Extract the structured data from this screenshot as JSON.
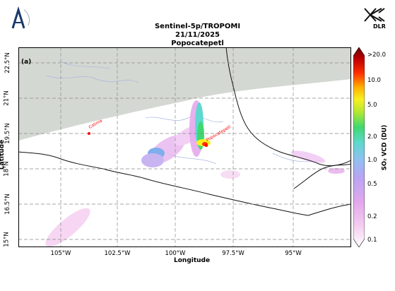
{
  "header": {
    "title_line1": "Sentinel-5p/TROPOMI",
    "title_line2": "21/11/2025",
    "title_line3": "Popocatepetl"
  },
  "logos": {
    "left_name": "agency-logo",
    "right_text": "DLR"
  },
  "map": {
    "panel_label": "(a)",
    "lat_ticks": [
      "22.5°N",
      "21°N",
      "19.5°N",
      "18°N",
      "16.5°N",
      "15°N"
    ],
    "lon_ticks": [
      "105°W",
      "102.5°W",
      "100°W",
      "97.5°W",
      "95°W"
    ],
    "xlabel": "Longitude",
    "ylabel": "Latitude",
    "markers": [
      {
        "name": "Colima",
        "color": "#ff0000"
      },
      {
        "name": "Popocatepetl",
        "color": "#ff0000"
      }
    ],
    "land_color": "#ffffff",
    "no_data_color": "#d4d8d2",
    "coastline_color": "#111111",
    "river_color": "#a8b8e0"
  },
  "colorbar": {
    "label": "SO$_2$ VCD (DU)",
    "label_display": "SO₂ VCD (DU)",
    "ticks": [
      ">20.0",
      "10.0",
      "5.0",
      "2.0",
      "1.0",
      "0.5",
      "0.2",
      "0.1"
    ],
    "scale": "log",
    "range": [
      0.1,
      20.0
    ],
    "colors": [
      "#ffffff",
      "#f5d0f0",
      "#e4a8ec",
      "#b9a4f4",
      "#8fc0f0",
      "#5fd8d0",
      "#3fd870",
      "#b8e830",
      "#f8f020",
      "#ffb000",
      "#ff3000",
      "#c00000",
      "#6a0000"
    ]
  }
}
